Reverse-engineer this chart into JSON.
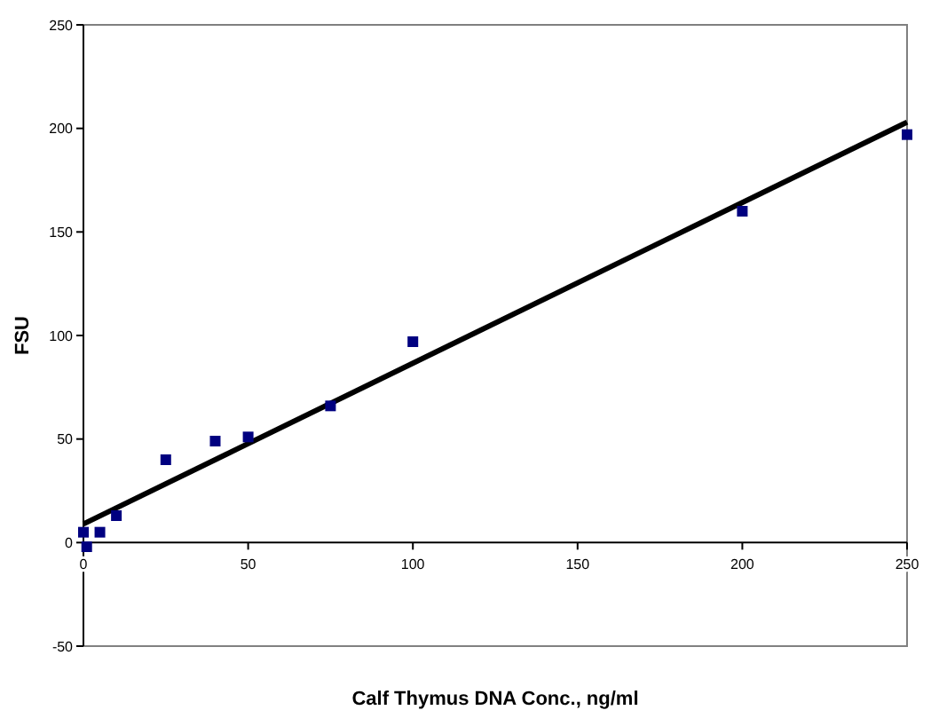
{
  "chart_data": {
    "type": "scatter",
    "xlabel": "Calf Thymus DNA Conc., ng/ml",
    "ylabel": "FSU",
    "xlim": [
      0,
      250
    ],
    "xticks": [
      0,
      50,
      100,
      150,
      200,
      250
    ],
    "ylim": [
      -50,
      250
    ],
    "yticks": [
      -50,
      0,
      50,
      100,
      150,
      200,
      250
    ],
    "grid": false,
    "marker": "square",
    "series": [
      {
        "color": "#000080",
        "x": [
          0,
          1,
          5,
          10,
          25,
          40,
          50,
          75,
          100,
          200,
          250
        ],
        "values": [
          5,
          -2,
          5,
          13,
          40,
          49,
          51,
          66,
          97,
          160,
          197
        ]
      },
      {
        "type": "line",
        "color": "#000000",
        "x": [
          0,
          250
        ],
        "values": [
          9,
          203
        ],
        "marker": "none"
      }
    ]
  }
}
